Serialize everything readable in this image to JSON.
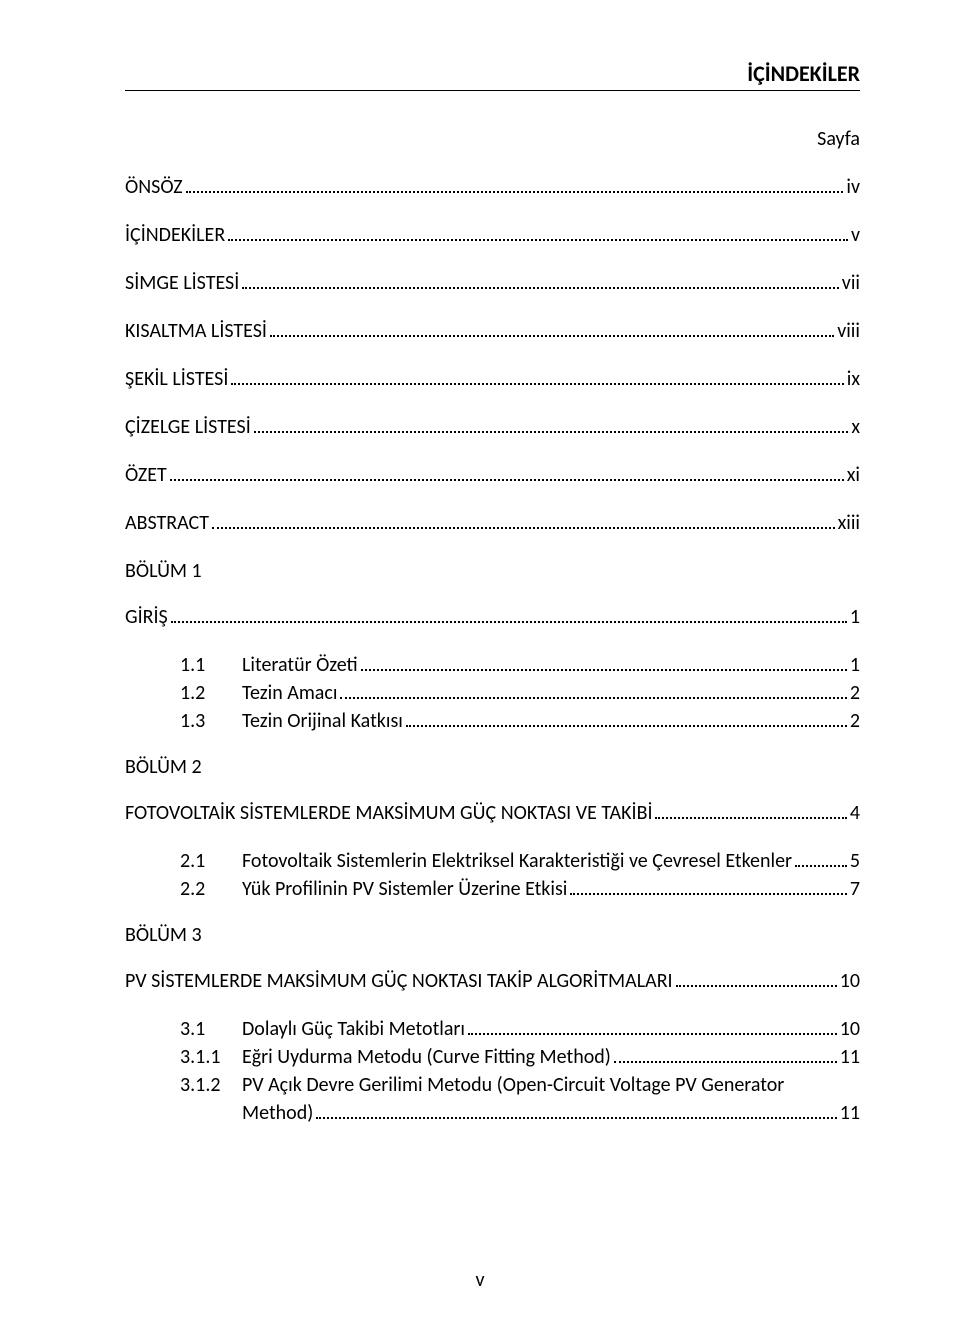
{
  "title": "İÇİNDEKİLER",
  "sayfa_label": "Sayfa",
  "front": [
    {
      "label": "ÖNSÖZ",
      "page": "iv"
    },
    {
      "label": "İÇİNDEKİLER",
      "page": "v"
    },
    {
      "label": "SİMGE LİSTESİ",
      "page": "vii"
    },
    {
      "label": "KISALTMA LİSTESİ",
      "page": "viii"
    },
    {
      "label": "ŞEKİL LİSTESİ",
      "page": "ix"
    },
    {
      "label": "ÇİZELGE LİSTESİ",
      "page": "x"
    },
    {
      "label": "ÖZET",
      "page": "xi"
    },
    {
      "label": "ABSTRACT",
      "page": "xiii"
    }
  ],
  "bolum1_label": "BÖLÜM 1",
  "giris": {
    "label": "GİRİŞ",
    "page": "1"
  },
  "b1_items": [
    {
      "num": "1.1",
      "label": "Literatür Özeti",
      "page": "1"
    },
    {
      "num": "1.2",
      "label": "Tezin Amacı",
      "page": "2"
    },
    {
      "num": "1.3",
      "label": "Tezin Orijinal Katkısı",
      "page": "2"
    }
  ],
  "bolum2_label": "BÖLÜM 2",
  "b2_heading": {
    "label": "FOTOVOLTAİK SİSTEMLERDE MAKSİMUM GÜÇ NOKTASI VE TAKİBİ",
    "page": "4"
  },
  "b2_items": [
    {
      "num": "2.1",
      "label": "Fotovoltaik Sistemlerin Elektriksel Karakteristiği ve Çevresel Etkenler",
      "page": "5"
    },
    {
      "num": "2.2",
      "label": "Yük Profilinin PV Sistemler Üzerine Etkisi",
      "page": "7"
    }
  ],
  "bolum3_label": "BÖLÜM 3",
  "b3_heading": {
    "label": "PV SİSTEMLERDE MAKSİMUM GÜÇ NOKTASI TAKİP ALGORİTMALARI",
    "page": "10"
  },
  "b3_items": {
    "s31": {
      "num": "3.1",
      "label": "Dolaylı Güç Takibi Metotları",
      "page": "10"
    },
    "s311": {
      "num": "3.1.1",
      "label": "Eğri Uydurma Metodu (Curve Fitting Method)",
      "page": "11"
    },
    "s312": {
      "num": "3.1.2",
      "line1": "PV Açık Devre Gerilimi Metodu (Open-Circuit Voltage PV Generator",
      "line2": "Method)",
      "page": "11"
    }
  },
  "footer": "v"
}
